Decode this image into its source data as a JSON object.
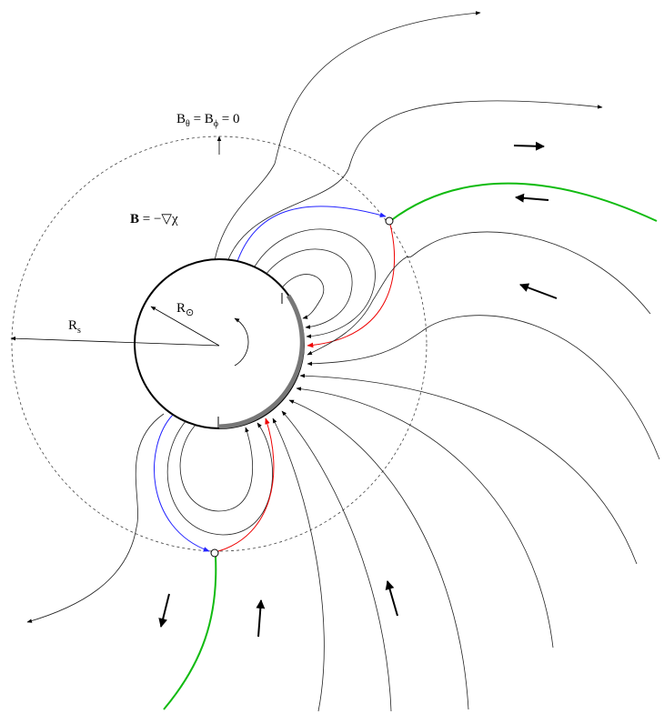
{
  "labels": {
    "condition": {
      "b1": "B",
      "s1": "θ",
      "mid": " = B",
      "s2": "ϕ",
      "end": " = 0"
    },
    "potential": {
      "b": "B",
      "rest": " = −▽χ"
    },
    "sun_radius": {
      "r": "R",
      "s": "⊙"
    },
    "source_radius": {
      "r": "R",
      "s": "s"
    }
  }
}
